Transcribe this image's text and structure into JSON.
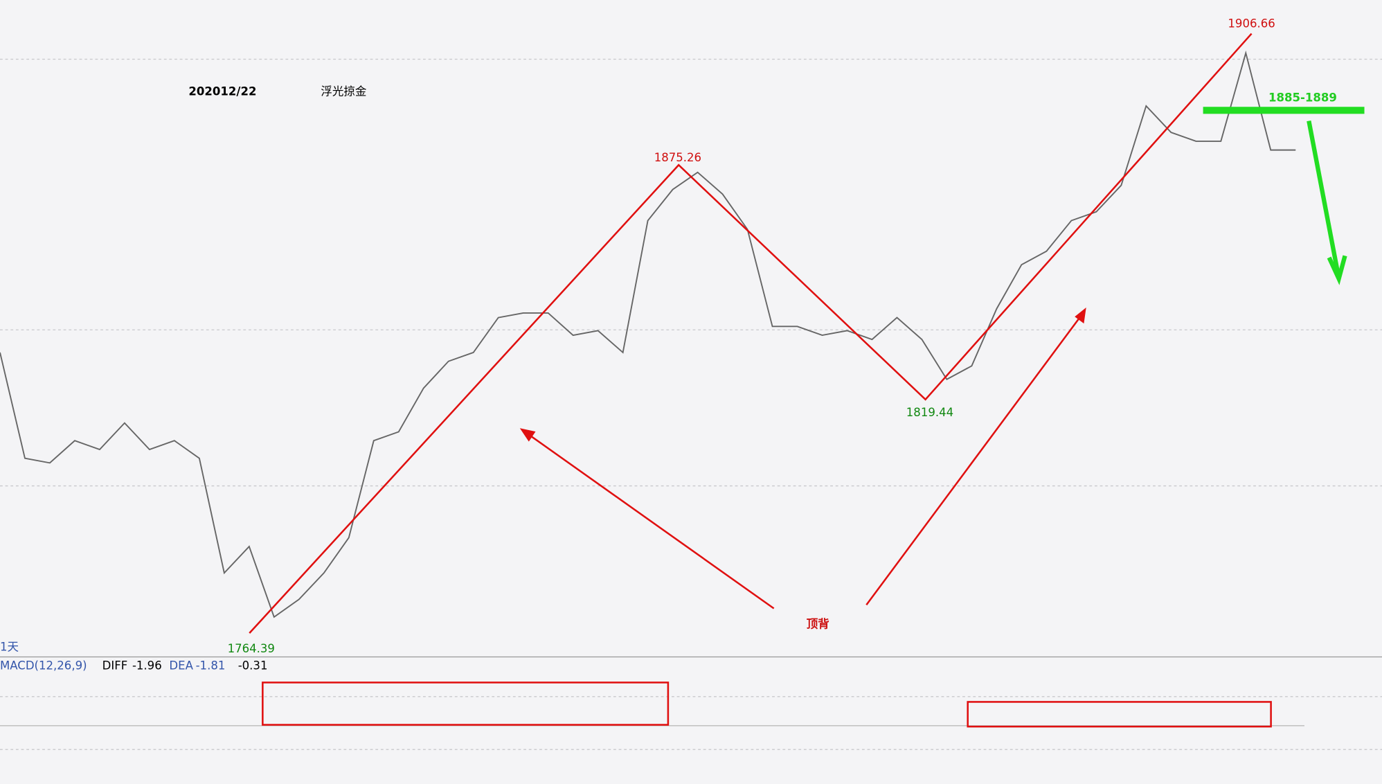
{
  "header": {
    "date": "202012/22",
    "author": "浮光掠金"
  },
  "chart_data": {
    "type": "line",
    "color": "#666666",
    "categories": [
      null,
      null,
      null,
      null,
      null,
      null,
      null,
      null,
      null,
      null,
      null,
      null,
      null,
      null,
      null,
      null,
      null,
      null,
      null,
      null,
      null,
      null,
      null,
      null,
      null,
      null,
      null,
      null,
      null,
      null,
      null,
      null,
      null,
      null,
      null,
      null,
      null,
      null,
      null,
      null,
      null,
      null,
      null,
      null,
      null,
      null,
      null,
      null,
      null,
      null,
      null,
      null,
      null
    ],
    "values": [
      1831.2,
      1806.0,
      1804.9,
      1810.2,
      1808.1,
      1814.4,
      1808.1,
      1810.2,
      1806.0,
      1778.7,
      1785.0,
      1768.2,
      1772.4,
      1778.7,
      1787.1,
      1810.2,
      1812.3,
      1822.7,
      1829.1,
      1831.2,
      1839.5,
      1840.6,
      1840.6,
      1835.3,
      1836.4,
      1831.2,
      1862.6,
      1870.0,
      1874.1,
      1868.9,
      1860.5,
      1837.4,
      1837.4,
      1835.3,
      1836.4,
      1834.3,
      1839.5,
      1834.3,
      1824.8,
      1828.0,
      1841.6,
      1852.1,
      1855.3,
      1862.6,
      1864.7,
      1871.0,
      1889.9,
      1883.6,
      1881.5,
      1881.5,
      1902.5,
      1879.4,
      1879.4
    ],
    "ylim": [
      1758.7,
      1915.1
    ],
    "price_labels": [
      1906.66,
      1875.26,
      1819.44,
      1764.39
    ],
    "zone_label": "1885-1889",
    "annotation": "顶背",
    "period": "1天"
  },
  "macd": {
    "label": "MACD(12,26,9)",
    "diff_label": "DIFF",
    "diff": -1.96,
    "dea_label": "DEA",
    "dea": -1.81,
    "macd": -0.31
  }
}
